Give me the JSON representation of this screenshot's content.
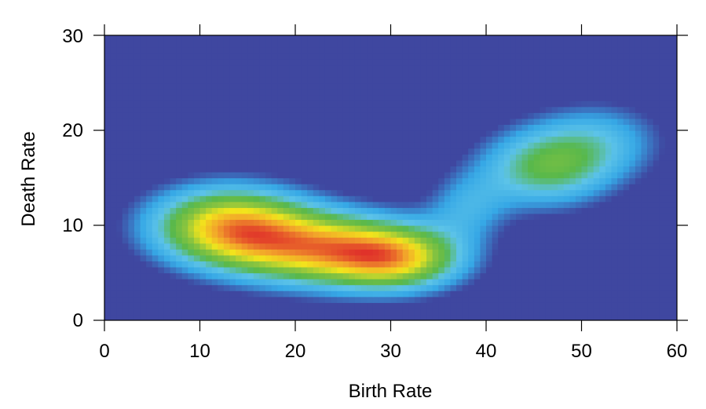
{
  "chart_data": {
    "type": "heatmap",
    "title": "",
    "xlabel": "Birth Rate",
    "ylabel": "Death Rate",
    "xlim": [
      0,
      60
    ],
    "ylim": [
      0,
      30
    ],
    "xticks": [
      0,
      10,
      20,
      30,
      40,
      50,
      60
    ],
    "yticks": [
      0,
      10,
      20,
      30
    ],
    "xtick_labels": [
      "0",
      "10",
      "20",
      "30",
      "40",
      "50",
      "60"
    ],
    "ytick_labels": [
      "0",
      "10",
      "20",
      "30"
    ],
    "grid": false,
    "colormap": [
      "#3f47a0",
      "#36a8e6",
      "#5cc3e8",
      "#58b84b",
      "#8ac43f",
      "#f2e51c",
      "#f2a12b",
      "#e0322a"
    ],
    "density_components": [
      {
        "x_center": 13,
        "y_center": 10,
        "x_spread": 6,
        "y_spread": 3.0,
        "weight": 1.0
      },
      {
        "x_center": 23,
        "y_center": 7.5,
        "x_spread": 7,
        "y_spread": 2.8,
        "weight": 0.9
      },
      {
        "x_center": 31,
        "y_center": 6.5,
        "x_spread": 5,
        "y_spread": 2.4,
        "weight": 0.75
      },
      {
        "x_center": 46,
        "y_center": 16,
        "x_spread": 5,
        "y_spread": 3.0,
        "weight": 0.6
      },
      {
        "x_center": 52,
        "y_center": 19,
        "x_spread": 5,
        "y_spread": 3.0,
        "weight": 0.35
      },
      {
        "x_center": 38,
        "y_center": 12,
        "x_spread": 3,
        "y_spread": 2.5,
        "weight": 0.3
      }
    ],
    "peak_region": {
      "x_range": [
        11,
        34
      ],
      "y_range": [
        6,
        11
      ],
      "level": "high"
    },
    "secondary_peak": {
      "x": 46,
      "y": 16,
      "level": "medium"
    }
  }
}
